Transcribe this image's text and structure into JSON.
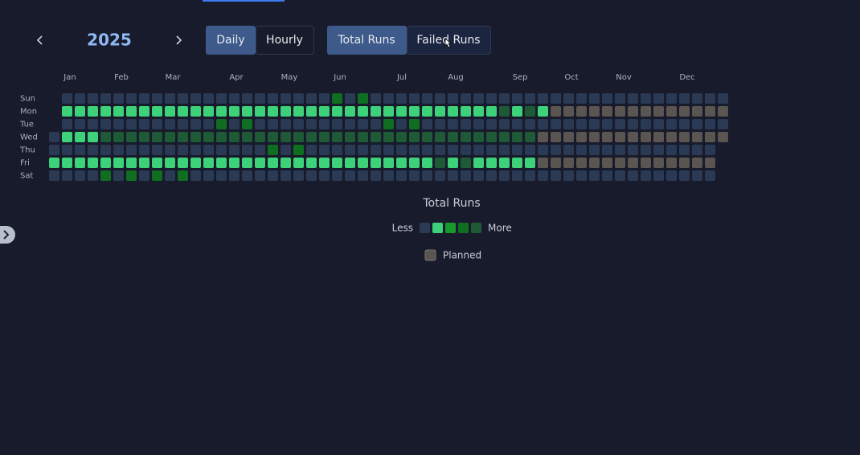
{
  "controls": {
    "year": "2025",
    "views": [
      "Daily",
      "Hourly"
    ],
    "metrics": [
      "Total Runs",
      "Failed Runs"
    ]
  },
  "heatmap": {
    "months": [
      "Jan",
      "Feb",
      "Mar",
      "Apr",
      "May",
      "Jun",
      "Jul",
      "Aug",
      "Sep",
      "Oct",
      "Nov",
      "Dec"
    ],
    "weekdays": [
      "Sun",
      "Mon",
      "Tue",
      "Wed",
      "Thu",
      "Fri",
      "Sat"
    ],
    "colors": [
      "#2a3a55",
      "#3dd17a",
      "#179a2b",
      "#0f6e1f",
      "#1e5a36",
      "#5b5551"
    ],
    "rows": [
      [
        null,
        0,
        0,
        0,
        0,
        0,
        0,
        0,
        0,
        0,
        0,
        0,
        0,
        0,
        0,
        0,
        0,
        0,
        0,
        0,
        0,
        0,
        3,
        0,
        3,
        0,
        0,
        0,
        0,
        0,
        0,
        0,
        0,
        0,
        0,
        0,
        0,
        0,
        0,
        0,
        0,
        0,
        0,
        0,
        0,
        0,
        0,
        0,
        0,
        0,
        0,
        0,
        0
      ],
      [
        null,
        1,
        1,
        1,
        1,
        1,
        1,
        1,
        1,
        1,
        1,
        1,
        1,
        1,
        1,
        1,
        1,
        1,
        1,
        1,
        1,
        1,
        1,
        1,
        1,
        1,
        1,
        1,
        1,
        1,
        1,
        1,
        1,
        1,
        1,
        4,
        1,
        4,
        1,
        5,
        5,
        5,
        5,
        5,
        5,
        5,
        5,
        5,
        5,
        5,
        5,
        5,
        5
      ],
      [
        null,
        0,
        0,
        0,
        0,
        0,
        0,
        0,
        0,
        0,
        0,
        0,
        0,
        3,
        0,
        3,
        0,
        0,
        0,
        0,
        0,
        0,
        0,
        0,
        0,
        0,
        3,
        0,
        3,
        0,
        0,
        0,
        0,
        0,
        0,
        0,
        0,
        0,
        0,
        0,
        0,
        0,
        0,
        0,
        0,
        0,
        0,
        0,
        0,
        0,
        0,
        0,
        0
      ],
      [
        0,
        1,
        1,
        1,
        4,
        4,
        4,
        4,
        4,
        4,
        4,
        4,
        4,
        4,
        4,
        4,
        4,
        4,
        4,
        4,
        4,
        4,
        4,
        4,
        4,
        4,
        4,
        4,
        4,
        4,
        4,
        4,
        4,
        4,
        4,
        4,
        4,
        4,
        5,
        5,
        5,
        5,
        5,
        5,
        5,
        5,
        5,
        5,
        5,
        5,
        5,
        5,
        5
      ],
      [
        0,
        0,
        0,
        0,
        0,
        0,
        0,
        0,
        0,
        0,
        0,
        0,
        0,
        0,
        0,
        0,
        0,
        3,
        0,
        3,
        0,
        0,
        0,
        0,
        0,
        0,
        0,
        0,
        0,
        0,
        0,
        0,
        0,
        0,
        0,
        0,
        0,
        0,
        0,
        0,
        0,
        0,
        0,
        0,
        0,
        0,
        0,
        0,
        0,
        0,
        0,
        0,
        null
      ],
      [
        1,
        1,
        1,
        1,
        1,
        1,
        1,
        1,
        1,
        1,
        1,
        1,
        1,
        1,
        1,
        1,
        1,
        1,
        1,
        1,
        1,
        1,
        1,
        1,
        1,
        1,
        1,
        1,
        1,
        1,
        4,
        1,
        4,
        1,
        1,
        1,
        1,
        1,
        5,
        5,
        5,
        5,
        5,
        5,
        5,
        5,
        5,
        5,
        5,
        5,
        5,
        5,
        null
      ],
      [
        0,
        0,
        0,
        0,
        3,
        0,
        3,
        0,
        3,
        0,
        3,
        0,
        0,
        0,
        0,
        0,
        0,
        0,
        0,
        0,
        0,
        0,
        0,
        0,
        0,
        0,
        0,
        0,
        0,
        0,
        0,
        0,
        0,
        0,
        0,
        0,
        0,
        0,
        0,
        0,
        0,
        0,
        0,
        0,
        0,
        0,
        0,
        0,
        0,
        0,
        0,
        0,
        null
      ]
    ],
    "legend": {
      "title": "Total Runs",
      "less": "Less",
      "more": "More",
      "planned": "Planned"
    }
  }
}
